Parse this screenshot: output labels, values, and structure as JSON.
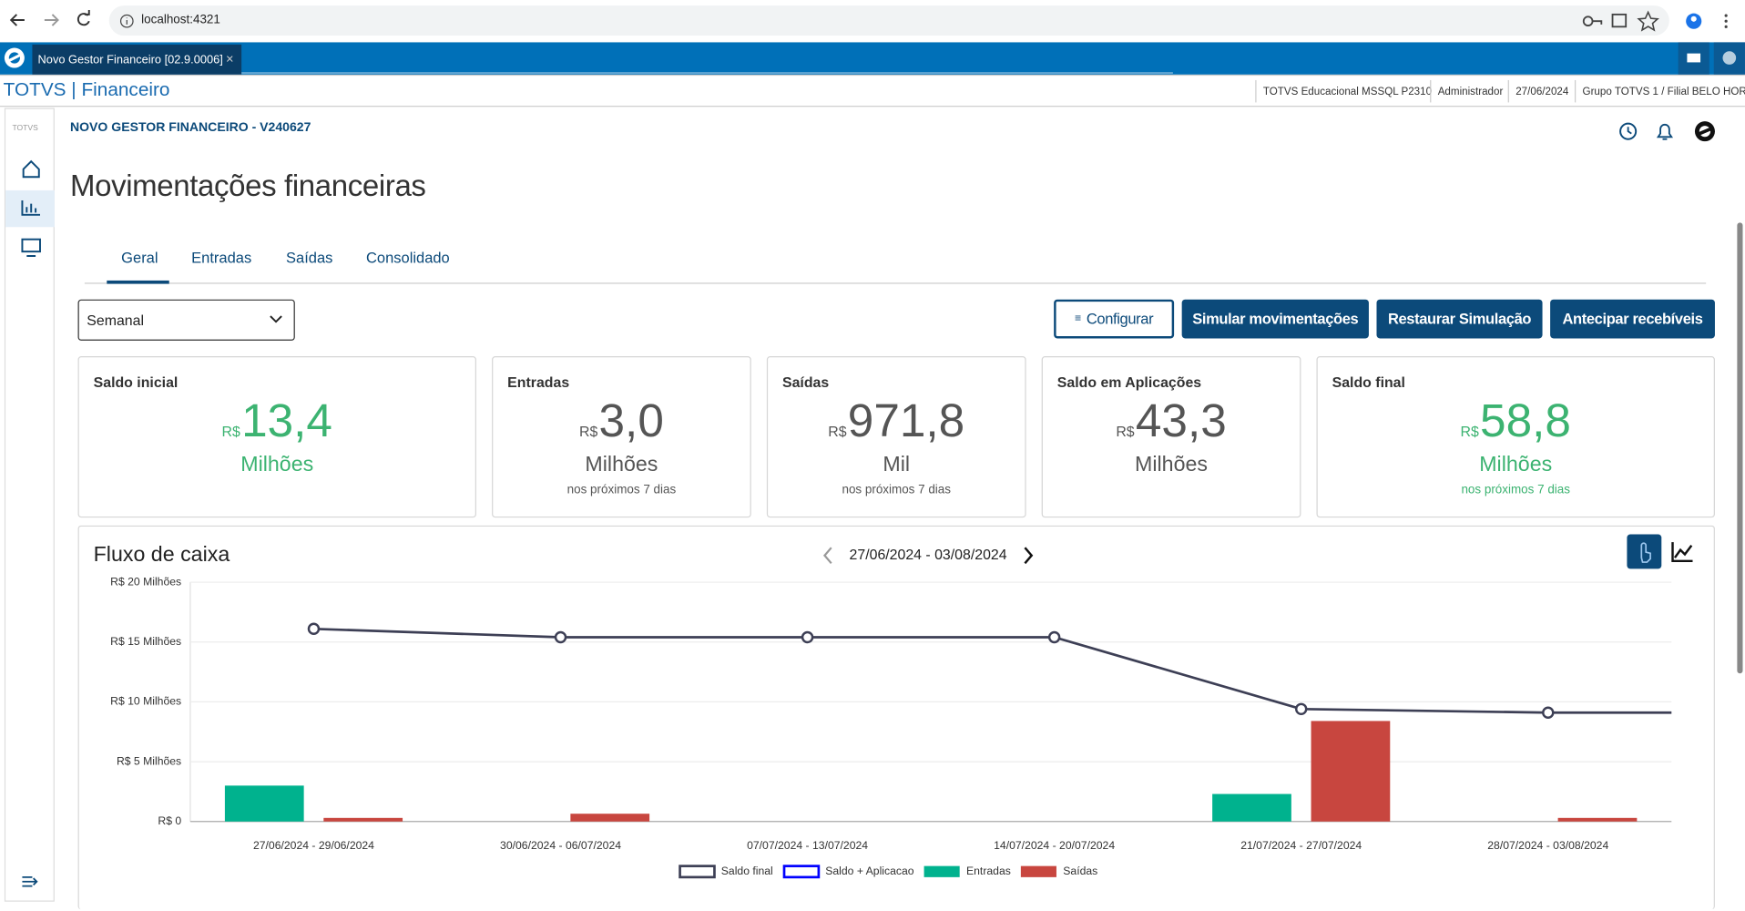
{
  "browser": {
    "url": "localhost:4321"
  },
  "app_tab": "Novo Gestor Financeiro [02.9.0006]",
  "header": {
    "brand": "TOTVS | Financeiro",
    "info": [
      "TOTVS Educacional MSSQL P2310",
      "Administrador",
      "27/06/2024",
      "Grupo TOTVS 1 / Filial BELO HOR"
    ]
  },
  "sidebar": {
    "logo": "TOTVS"
  },
  "page": {
    "module": "NOVO GESTOR FINANCEIRO - V240627",
    "title": "Movimentações financeiras",
    "tabs": [
      "Geral",
      "Entradas",
      "Saídas",
      "Consolidado"
    ],
    "period_select": "Semanal",
    "buttons": [
      "Configurar",
      "Simular movimentações",
      "Restaurar Simulação",
      "Antecipar recebíveis"
    ]
  },
  "cards": [
    {
      "label": "Saldo inicial",
      "currency": "R$",
      "value": "13,4",
      "unit": "Milhões"
    },
    {
      "label": "Entradas",
      "currency": "R$",
      "value": "3,0",
      "unit": "Milhões",
      "note": "nos próximos 7 dias"
    },
    {
      "label": "Saídas",
      "currency": "R$",
      "value": "971,8",
      "unit": "Mil",
      "note": "nos próximos 7 dias"
    },
    {
      "label": "Saldo em Aplicações",
      "currency": "R$",
      "value": "43,3",
      "unit": "Milhões"
    },
    {
      "label": "Saldo final",
      "currency": "R$",
      "value": "58,8",
      "unit": "Milhões",
      "note": "nos próximos 7 dias"
    }
  ],
  "chart_data": {
    "type": "combo",
    "title": "Fluxo de caixa",
    "subtitle": "27/06/2024 - 03/08/2024",
    "categories": [
      "27/06/2024 - 29/06/2024",
      "30/06/2024 - 06/07/2024",
      "07/07/2024 - 13/07/2024",
      "14/07/2024 - 20/07/2024",
      "21/07/2024 - 27/07/2024",
      "28/07/2024 - 03/08/2024"
    ],
    "series": [
      {
        "name": "Saldo final",
        "type": "line",
        "color": "#3d3f55",
        "values": [
          16.1,
          15.4,
          15.4,
          15.4,
          9.4,
          9.1
        ]
      },
      {
        "name": "Saldo + Aplicacao",
        "type": "line",
        "color": "#0000ff",
        "values": [
          null,
          null,
          null,
          null,
          null,
          null
        ]
      },
      {
        "name": "Entradas",
        "type": "bar",
        "color": "#00b28e",
        "values": [
          3.0,
          null,
          null,
          null,
          2.3,
          null
        ]
      },
      {
        "name": "Saídas",
        "type": "bar",
        "color": "#c8463f",
        "values": [
          0.3,
          0.65,
          null,
          null,
          8.4,
          0.3
        ]
      }
    ],
    "ylim": [
      0,
      20
    ],
    "yticks": [
      {
        "value": 0,
        "label": "R$ 0"
      },
      {
        "value": 5,
        "label": "R$ 5 Milhões"
      },
      {
        "value": 10,
        "label": "R$ 10 Milhões"
      },
      {
        "value": 15,
        "label": "R$ 15 Milhões"
      },
      {
        "value": 20,
        "label": "R$ 20 Milhões"
      }
    ],
    "grid": true,
    "legend": "bottom"
  }
}
